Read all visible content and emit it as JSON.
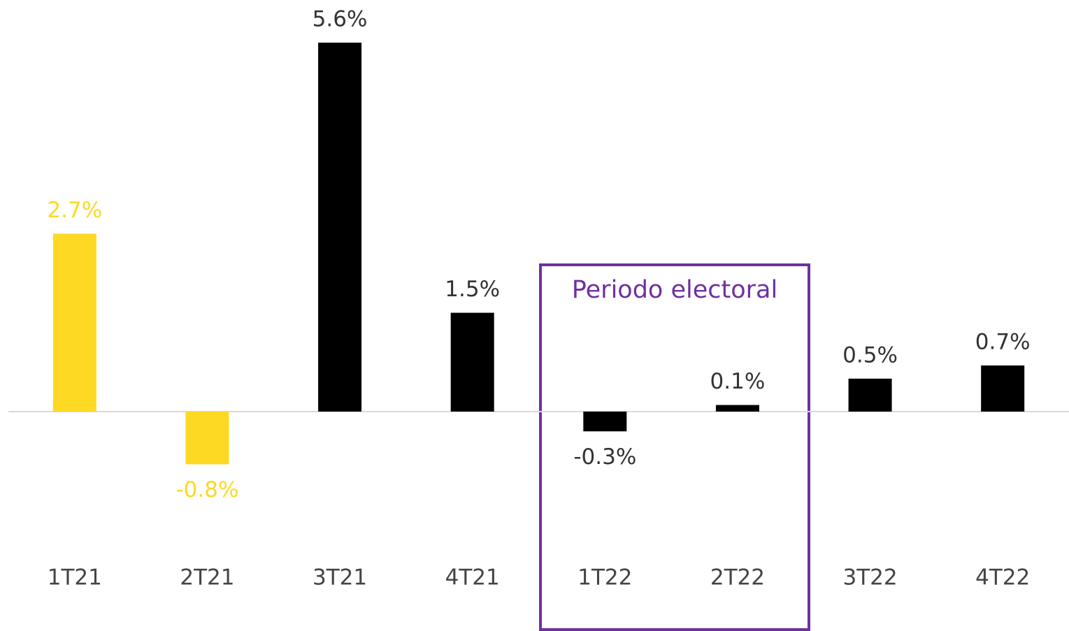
{
  "chart_data": {
    "type": "bar",
    "categories": [
      "1T21",
      "2T21",
      "3T21",
      "4T21",
      "1T22",
      "2T22",
      "3T22",
      "4T22"
    ],
    "values": [
      2.7,
      -0.8,
      5.6,
      1.5,
      -0.3,
      0.1,
      0.5,
      0.7
    ],
    "value_labels": [
      "2.7%",
      "-0.8%",
      "5.6%",
      "1.5%",
      "-0.3%",
      "0.1%",
      "0.5%",
      "0.7%"
    ],
    "colors": [
      "#fdd923",
      "#fdd923",
      "#000000",
      "#000000",
      "#000000",
      "#000000",
      "#000000",
      "#000000"
    ],
    "annotation": "Periodo electoral"
  }
}
